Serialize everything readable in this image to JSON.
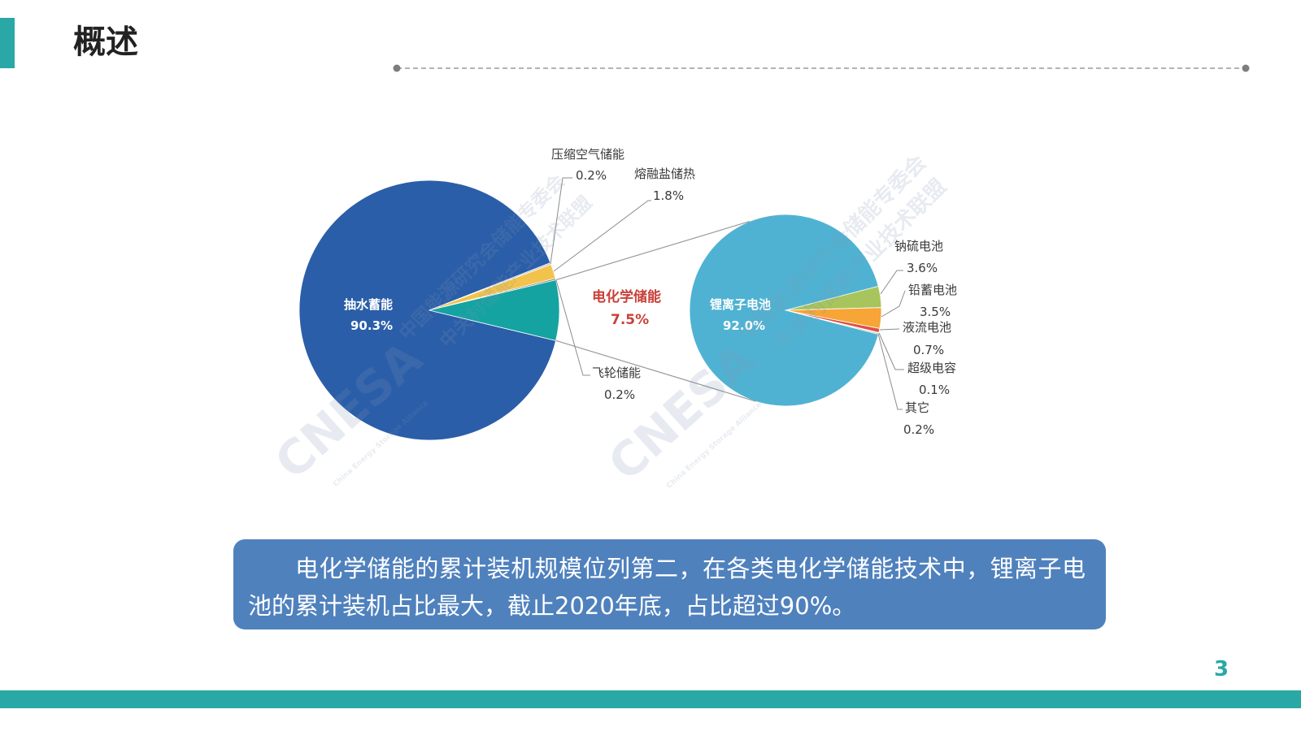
{
  "slide": {
    "title": "概述",
    "page_number": "3",
    "colors": {
      "accent": "#2aa8a6",
      "summary_box": "#4f81bd",
      "highlight": "#c8413a"
    }
  },
  "summary": {
    "text": "电化学储能的累计装机规模位列第二，在各类电化学储能技术中，锂离子电池的累计装机占比最大，截止2020年底，占比超过90%。"
  },
  "watermark": {
    "logo": "CNESA",
    "org_line_1": "中国能源研究会储能专委会",
    "org_line_2": "中关村储能产业技术联盟",
    "org_english": "China Energy Storage Alliance"
  },
  "chart_data": {
    "type": "pie",
    "subtype": "pie-of-pie",
    "main": {
      "slices": [
        {
          "name": "抽水蓄能",
          "value": 90.3,
          "label": "90.3%",
          "color": "#2b5ea8"
        },
        {
          "name": "压缩空气储能",
          "value": 0.2,
          "label": "0.2%",
          "color": "#b5b5b5"
        },
        {
          "name": "熔融盐储热",
          "value": 1.8,
          "label": "1.8%",
          "color": "#f2c34c"
        },
        {
          "name": "飞轮储能",
          "value": 0.2,
          "label": "0.2%",
          "color": "#7a7a7a"
        },
        {
          "name": "电化学储能",
          "value": 7.5,
          "label": "7.5%",
          "color": "#14a3a0"
        }
      ]
    },
    "detail": {
      "parent": "电化学储能",
      "slices": [
        {
          "name": "钠硫电池",
          "value": 3.6,
          "label": "3.6%",
          "color": "#a8c45c"
        },
        {
          "name": "铅蓄电池",
          "value": 3.5,
          "label": "3.5%",
          "color": "#f6a536"
        },
        {
          "name": "液流电池",
          "value": 0.7,
          "label": "0.7%",
          "color": "#e2503e"
        },
        {
          "name": "超级电容",
          "value": 0.1,
          "label": "0.1%",
          "color": "#c9a3d6"
        },
        {
          "name": "其它",
          "value": 0.2,
          "label": "0.2%",
          "color": "#9e9e9e"
        },
        {
          "name": "锂离子电池",
          "value": 92.0,
          "label": "92.0%",
          "color": "#50b2d2"
        }
      ]
    }
  }
}
